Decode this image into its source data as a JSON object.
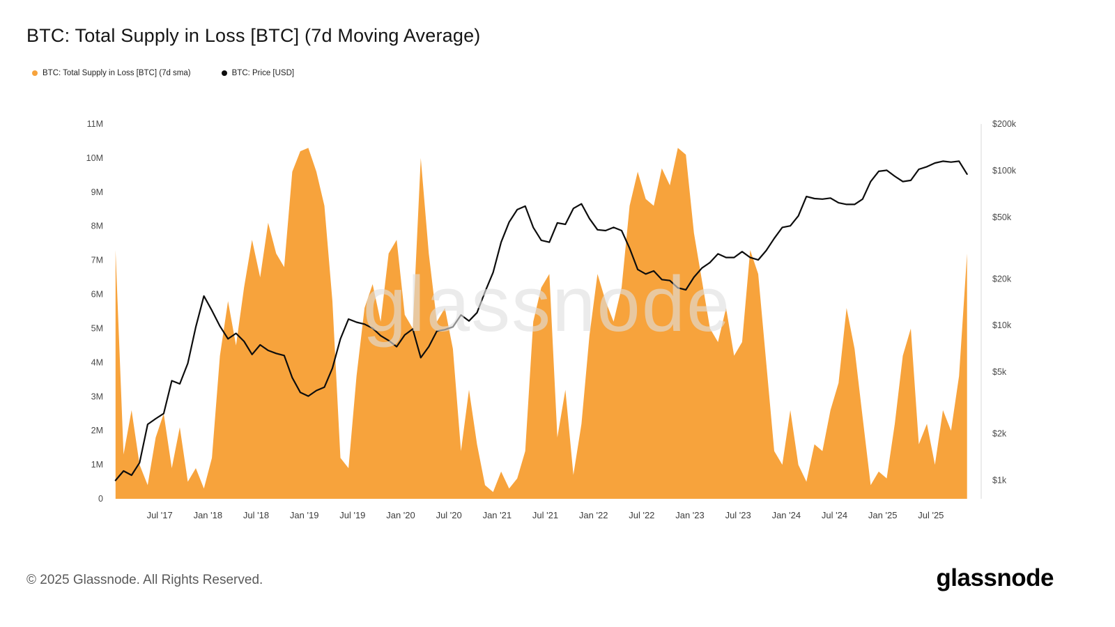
{
  "page": {
    "title": "BTC: Total Supply in Loss [BTC] (7d Moving Average)",
    "watermark": "glassnode",
    "footer_copyright": "© 2025 Glassnode. All Rights Reserved.",
    "brand_logo": "glassnode"
  },
  "legend": [
    {
      "label": "BTC: Total Supply in Loss [BTC] (7d sma)",
      "color": "#f7a33c"
    },
    {
      "label": "BTC: Price [USD]",
      "color": "#0d0d0d"
    }
  ],
  "chart_data": {
    "type": "area+line",
    "title": "BTC: Total Supply in Loss [BTC] (7d Moving Average)",
    "x_start": {
      "year": 2017,
      "month": 1
    },
    "x_interval": "monthly",
    "x_domain_years": [
      2017.0,
      2026.0
    ],
    "x_axis": {
      "tick_labels": [
        "Jul '17",
        "Jan '18",
        "Jul '18",
        "Jan '19",
        "Jul '19",
        "Jan '20",
        "Jul '20",
        "Jan '21",
        "Jul '21",
        "Jan '22",
        "Jul '22",
        "Jan '23",
        "Jul '23",
        "Jan '24",
        "Jul '24",
        "Jan '25",
        "Jul '25"
      ],
      "tick_times": [
        2017.5,
        2018.0,
        2018.5,
        2019.0,
        2019.5,
        2020.0,
        2020.5,
        2021.0,
        2021.5,
        2022.0,
        2022.5,
        2023.0,
        2023.5,
        2024.0,
        2024.5,
        2025.0,
        2025.5
      ]
    },
    "left_axis": {
      "title": "Total Supply in Loss (BTC)",
      "tick_labels": [
        "0",
        "1M",
        "2M",
        "3M",
        "4M",
        "5M",
        "6M",
        "7M",
        "8M",
        "9M",
        "10M",
        "11M"
      ],
      "tick_step_m": 1,
      "max_m": 11,
      "grid": false
    },
    "right_axis": {
      "title": "Price (USD)",
      "scale": "log",
      "domain": [
        760,
        200000
      ],
      "tick_labels": [
        "$1k",
        "$2k",
        "$5k",
        "$10k",
        "$20k",
        "$50k",
        "$100k",
        "$200k"
      ],
      "tick_values": [
        1000,
        2000,
        5000,
        10000,
        20000,
        50000,
        100000,
        200000
      ],
      "grid": false
    },
    "series": [
      {
        "name": "BTC: Total Supply in Loss [BTC] (7d sma)",
        "type": "area",
        "axis": "left",
        "color": "#f7a33c",
        "unit": "million BTC",
        "values": [
          7.3,
          1.3,
          2.6,
          1.0,
          0.4,
          1.8,
          2.5,
          0.9,
          2.1,
          0.5,
          0.9,
          0.3,
          1.2,
          4.2,
          5.8,
          4.5,
          6.2,
          7.6,
          6.5,
          8.1,
          7.2,
          6.8,
          9.6,
          10.2,
          10.3,
          9.6,
          8.6,
          5.8,
          1.2,
          0.9,
          3.6,
          5.6,
          6.3,
          5.2,
          7.2,
          7.6,
          5.4,
          5.0,
          10.0,
          7.2,
          5.2,
          5.6,
          4.4,
          1.4,
          3.2,
          1.6,
          0.4,
          0.2,
          0.8,
          0.3,
          0.6,
          1.4,
          5.2,
          6.2,
          6.6,
          1.8,
          3.2,
          0.7,
          2.2,
          4.8,
          6.6,
          5.8,
          5.2,
          6.2,
          8.6,
          9.6,
          8.8,
          8.6,
          9.7,
          9.2,
          10.3,
          10.1,
          7.8,
          6.4,
          5.0,
          4.6,
          5.6,
          4.2,
          4.6,
          7.3,
          6.6,
          4.0,
          1.4,
          1.0,
          2.6,
          1.0,
          0.5,
          1.6,
          1.4,
          2.6,
          3.4,
          5.6,
          4.4,
          2.4,
          0.4,
          0.8,
          0.6,
          2.2,
          4.2,
          5.0,
          1.6,
          2.2,
          1.0,
          2.6,
          2.0,
          3.6,
          7.2
        ]
      },
      {
        "name": "BTC: Price [USD]",
        "type": "line",
        "axis": "right",
        "color": "#0d0d0d",
        "unit": "USD",
        "values": [
          1000,
          1150,
          1080,
          1300,
          2300,
          2500,
          2700,
          4400,
          4200,
          5700,
          9800,
          15500,
          12500,
          9900,
          8200,
          8900,
          7900,
          6500,
          7500,
          6900,
          6600,
          6400,
          4600,
          3700,
          3500,
          3800,
          4000,
          5300,
          8200,
          11000,
          10500,
          10200,
          9600,
          8600,
          8000,
          7300,
          8700,
          9500,
          6200,
          7300,
          9200,
          9400,
          9800,
          11700,
          10700,
          12100,
          16500,
          22000,
          34500,
          46500,
          56000,
          59000,
          43000,
          35500,
          34500,
          46000,
          45000,
          57000,
          61000,
          49000,
          41500,
          41000,
          43000,
          41000,
          31500,
          23000,
          21500,
          22500,
          19800,
          19500,
          17500,
          17000,
          20500,
          23500,
          25500,
          29000,
          27500,
          27500,
          30000,
          27500,
          26500,
          30500,
          36500,
          43000,
          44000,
          51000,
          68000,
          66000,
          65500,
          66500,
          62000,
          60500,
          60500,
          65500,
          85000,
          99000,
          100500,
          92000,
          85000,
          86500,
          102000,
          106000,
          112000,
          115000,
          113500,
          115000,
          95000
        ]
      }
    ]
  }
}
